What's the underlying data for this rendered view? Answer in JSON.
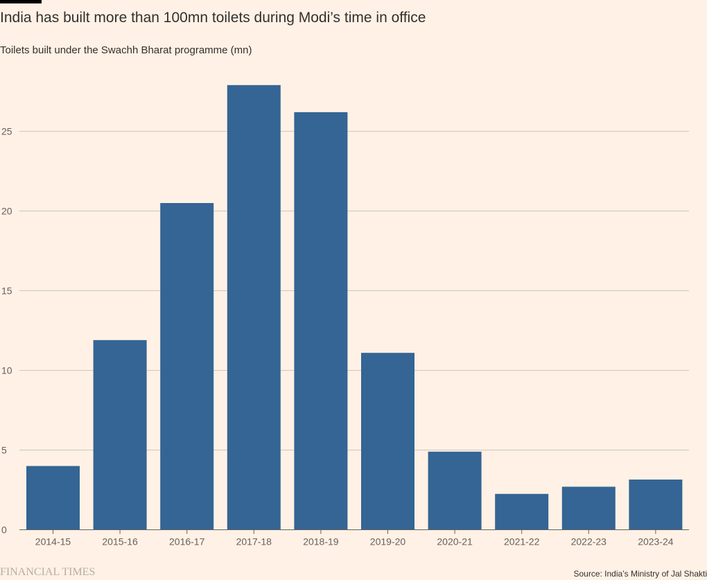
{
  "header": {
    "title": "India has built more than 100mn toilets during Modi’s time in office",
    "subtitle": "Toilets built under the Swachh Bharat programme (mn)"
  },
  "footer": {
    "logo_text": "FINANCIAL TIMES",
    "source": "Source: India’s Ministry of Jal Shakti"
  },
  "colors": {
    "background": "#FFF1E5",
    "bar": "#346594",
    "grid": "#CEC6BE",
    "text": "#33302E",
    "muted_text": "#66605C"
  },
  "chart_data": {
    "type": "bar",
    "title": "India has built more than 100mn toilets during Modi’s time in office",
    "subtitle": "Toilets built under the Swachh Bharat programme (mn)",
    "xlabel": "",
    "ylabel": "",
    "categories": [
      "2014-15",
      "2015-16",
      "2016-17",
      "2017-18",
      "2018-19",
      "2019-20",
      "2020-21",
      "2021-22",
      "2022-23",
      "2023-24"
    ],
    "values": [
      4.0,
      11.9,
      20.5,
      27.9,
      26.2,
      11.1,
      4.9,
      2.25,
      2.7,
      3.15
    ],
    "ylim": [
      0,
      28
    ],
    "yticks": [
      0,
      5,
      10,
      15,
      20,
      25
    ],
    "grid": true,
    "legend": "none"
  }
}
